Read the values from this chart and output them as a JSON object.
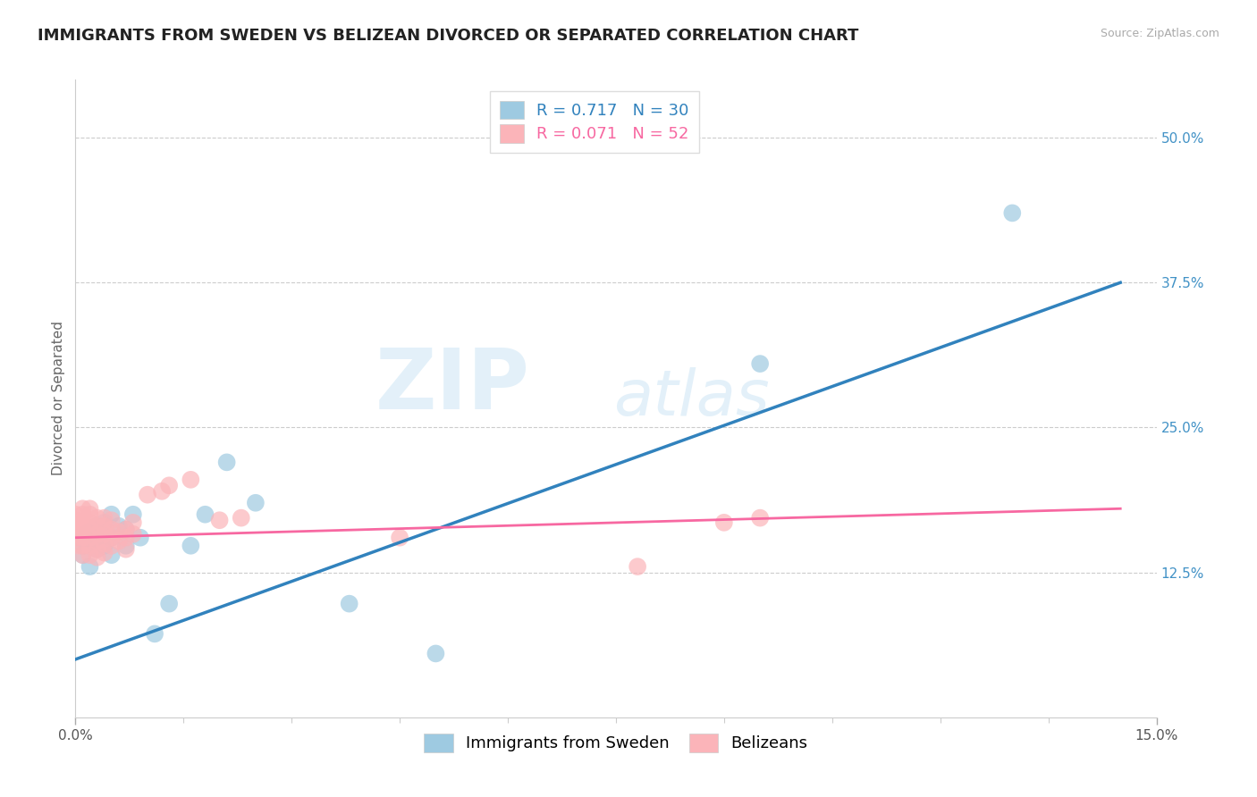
{
  "title": "IMMIGRANTS FROM SWEDEN VS BELIZEAN DIVORCED OR SEPARATED CORRELATION CHART",
  "source_text": "Source: ZipAtlas.com",
  "ylabel": "Divorced or Separated",
  "x_min": 0.0,
  "x_max": 0.15,
  "y_min": 0.0,
  "y_max": 0.55,
  "y_ticks": [
    0.125,
    0.25,
    0.375,
    0.5
  ],
  "y_tick_labels": [
    "12.5%",
    "25.0%",
    "37.5%",
    "50.0%"
  ],
  "blue_color": "#9ecae1",
  "pink_color": "#fbb4b9",
  "blue_line_color": "#3182bd",
  "pink_line_color": "#f768a1",
  "blue_R": 0.717,
  "blue_N": 30,
  "pink_R": 0.071,
  "pink_N": 52,
  "blue_scatter_x": [
    0.0005,
    0.001,
    0.001,
    0.0015,
    0.002,
    0.002,
    0.002,
    0.003,
    0.003,
    0.003,
    0.004,
    0.004,
    0.005,
    0.005,
    0.005,
    0.006,
    0.007,
    0.007,
    0.008,
    0.009,
    0.011,
    0.013,
    0.016,
    0.018,
    0.021,
    0.025,
    0.038,
    0.05,
    0.095,
    0.13
  ],
  "blue_scatter_y": [
    0.155,
    0.148,
    0.14,
    0.158,
    0.13,
    0.15,
    0.16,
    0.145,
    0.155,
    0.165,
    0.148,
    0.168,
    0.14,
    0.155,
    0.175,
    0.165,
    0.148,
    0.162,
    0.175,
    0.155,
    0.072,
    0.098,
    0.148,
    0.175,
    0.22,
    0.185,
    0.098,
    0.055,
    0.305,
    0.435
  ],
  "pink_scatter_x": [
    0.0,
    0.0,
    0.0,
    0.0,
    0.0,
    0.0005,
    0.001,
    0.001,
    0.001,
    0.001,
    0.001,
    0.001,
    0.001,
    0.002,
    0.002,
    0.002,
    0.002,
    0.002,
    0.002,
    0.002,
    0.003,
    0.003,
    0.003,
    0.003,
    0.003,
    0.003,
    0.004,
    0.004,
    0.004,
    0.004,
    0.004,
    0.005,
    0.005,
    0.005,
    0.005,
    0.006,
    0.006,
    0.007,
    0.007,
    0.007,
    0.008,
    0.008,
    0.01,
    0.012,
    0.013,
    0.016,
    0.02,
    0.023,
    0.045,
    0.078,
    0.09,
    0.095
  ],
  "pink_scatter_y": [
    0.155,
    0.16,
    0.165,
    0.17,
    0.175,
    0.148,
    0.14,
    0.148,
    0.155,
    0.162,
    0.168,
    0.175,
    0.18,
    0.14,
    0.148,
    0.155,
    0.162,
    0.168,
    0.175,
    0.18,
    0.138,
    0.145,
    0.152,
    0.158,
    0.165,
    0.172,
    0.142,
    0.15,
    0.158,
    0.165,
    0.172,
    0.148,
    0.155,
    0.162,
    0.17,
    0.152,
    0.16,
    0.145,
    0.155,
    0.162,
    0.158,
    0.168,
    0.192,
    0.195,
    0.2,
    0.205,
    0.17,
    0.172,
    0.155,
    0.13,
    0.168,
    0.172
  ],
  "blue_line_x0": 0.0,
  "blue_line_y0": 0.05,
  "blue_line_x1": 0.145,
  "blue_line_y1": 0.375,
  "pink_line_x0": 0.0,
  "pink_line_y0": 0.155,
  "pink_line_x1": 0.145,
  "pink_line_y1": 0.18,
  "watermark_zip": "ZIP",
  "watermark_atlas": "atlas",
  "background_color": "#ffffff",
  "grid_color": "#cccccc",
  "right_label_color": "#4292c6",
  "title_fontsize": 13,
  "axis_label_fontsize": 11,
  "tick_fontsize": 11,
  "legend_fontsize": 13
}
